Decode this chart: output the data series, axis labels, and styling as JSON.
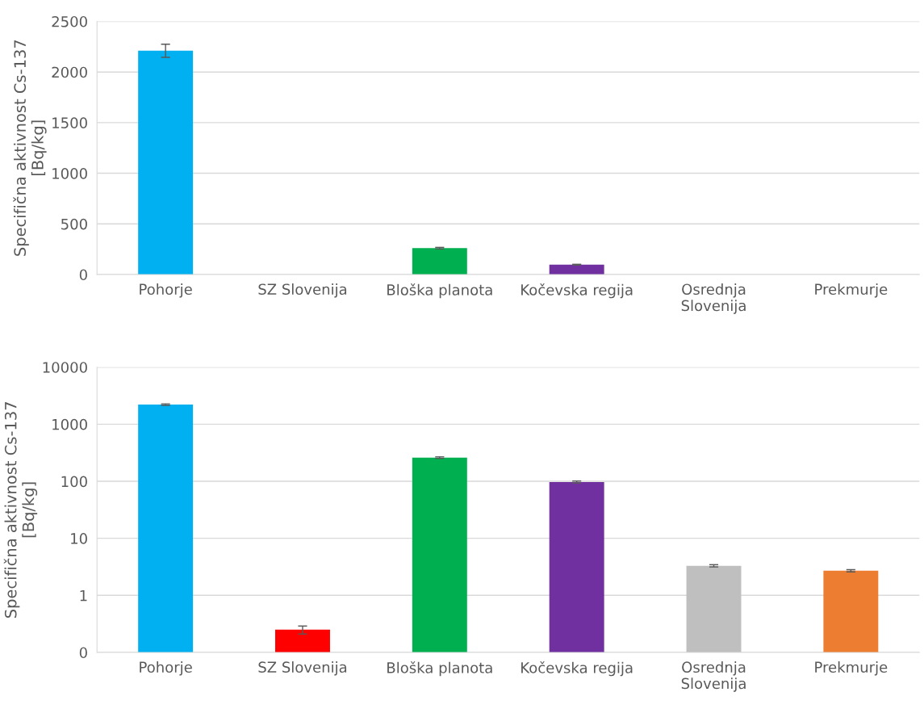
{
  "chart_data": [
    {
      "type": "bar",
      "ylabel": "Specifična aktivnost Cs-137\n[Bq/kg]",
      "categories": [
        "Pohorje",
        "SZ Slovenija",
        "Bloška planota",
        "Kočevska regija",
        "Osrednja\nSlovenija",
        "Prekmurje"
      ],
      "values": [
        2210,
        null,
        260,
        97,
        null,
        null
      ],
      "colors": [
        "#00b0f0",
        "#ff0000",
        "#00b050",
        "#7030a0",
        "#bfbfbf",
        "#ed7d31"
      ],
      "errors": [
        65,
        null,
        8,
        4,
        null,
        null
      ],
      "ylim": [
        0,
        2500
      ],
      "yticks": [
        0,
        500,
        1000,
        1500,
        2000,
        2500
      ],
      "grid": "y",
      "legend": false
    },
    {
      "type": "bar",
      "ylabel": "Specifična aktivnost Cs-137\n[Bq/kg]",
      "categories": [
        "Pohorje",
        "SZ Slovenija",
        "Bloška planota",
        "Kočevska regija",
        "Osrednja\nSlovenija",
        "Prekmurje"
      ],
      "values": [
        2210,
        0.25,
        260,
        97,
        3.3,
        2.7
      ],
      "colors": [
        "#00b0f0",
        "#ff0000",
        "#00b050",
        "#7030a0",
        "#bfbfbf",
        "#ed7d31"
      ],
      "errors": [
        65,
        0.04,
        8,
        4,
        0.15,
        0.12
      ],
      "log": true,
      "ylim": [
        0.1,
        10000
      ],
      "yticks": [
        {
          "value": 0.1,
          "label": "0"
        },
        1,
        10,
        100,
        1000,
        10000
      ],
      "grid": "y",
      "legend": false
    }
  ]
}
